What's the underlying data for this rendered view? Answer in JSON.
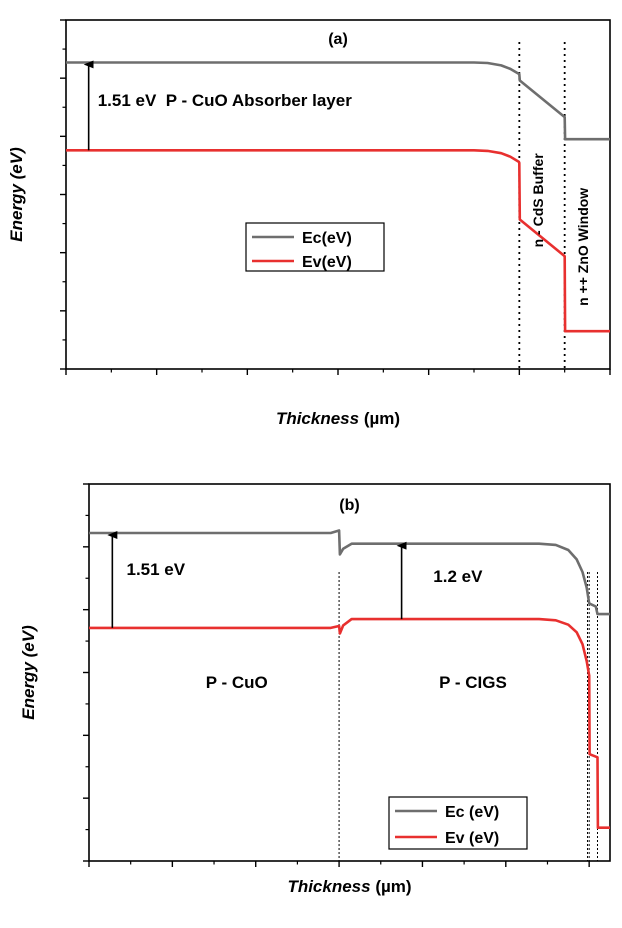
{
  "chart_data": [
    {
      "type": "line",
      "panel": "(a)",
      "xlabel_italic": "Thickness",
      "xlabel_unit": " (µm)",
      "ylabel": "Energy (eV)",
      "xlim": [
        0,
        1.2
      ],
      "ylim": [
        -4,
        2
      ],
      "xticks": [
        "0,0",
        "0,2",
        "0,4",
        "0,6",
        "0,8",
        "1,0",
        "1,2"
      ],
      "xtick_values": [
        0,
        0.2,
        0.4,
        0.6,
        0.8,
        1.0,
        1.2
      ],
      "yticks": [
        "-4",
        "-3",
        "-2",
        "-1",
        "0",
        "1",
        "2"
      ],
      "ytick_values": [
        -4,
        -3,
        -2,
        -1,
        0,
        1,
        2
      ],
      "grid": false,
      "legend_position": "center-left",
      "series": [
        {
          "name": "Ec(eV)",
          "color": "#6e6e6e",
          "points": [
            [
              0,
              1.27
            ],
            [
              0.9,
              1.27
            ],
            [
              0.93,
              1.26
            ],
            [
              0.96,
              1.22
            ],
            [
              0.98,
              1.16
            ],
            [
              1.0,
              1.07
            ],
            [
              1.001,
              0.96
            ],
            [
              1.1,
              0.33
            ],
            [
              1.101,
              -0.05
            ],
            [
              1.2,
              -0.05
            ]
          ]
        },
        {
          "name": "Ev(eV)",
          "color": "#e8302f",
          "points": [
            [
              0,
              -0.24
            ],
            [
              0.9,
              -0.24
            ],
            [
              0.93,
              -0.25
            ],
            [
              0.96,
              -0.29
            ],
            [
              0.98,
              -0.35
            ],
            [
              0.999,
              -0.44
            ],
            [
              1.0,
              -0.46
            ],
            [
              1.001,
              -1.43
            ],
            [
              1.1,
              -2.06
            ],
            [
              1.101,
              -3.35
            ],
            [
              1.2,
              -3.35
            ]
          ]
        }
      ],
      "vlines": [
        1.0,
        1.1
      ],
      "annotations": [
        {
          "text": "1.51 eV",
          "x": 0.07,
          "y": 0.52
        },
        {
          "text": "P - CuO Absorber layer",
          "x": 0.22,
          "y": 0.52
        },
        {
          "text": "n - CdS Buffer",
          "x": 1.052,
          "y": -1.1,
          "rotate": true
        },
        {
          "text": "n ++ ZnO Window",
          "x": 1.152,
          "y": -1.9,
          "rotate": true
        }
      ],
      "arrows": [
        {
          "x": 0.05,
          "from": -0.24,
          "to": 1.27
        }
      ]
    },
    {
      "type": "line",
      "panel": "(b)",
      "xlabel_italic": "Thickness",
      "xlabel_unit": " (µm)",
      "ylabel": "Energy (eV)",
      "xlim": [
        0,
        6.25
      ],
      "ylim": [
        -4,
        2
      ],
      "xticks": [
        "0",
        "1",
        "2",
        "3",
        "4",
        "5",
        "6"
      ],
      "xtick_values": [
        0,
        1,
        2,
        3,
        4,
        5,
        6
      ],
      "yticks": [
        "-4",
        "-3",
        "-2",
        "-1",
        "0",
        "1",
        "2"
      ],
      "ytick_values": [
        -4,
        -3,
        -2,
        -1,
        0,
        1,
        2
      ],
      "grid": false,
      "legend_position": "bottom-right",
      "series": [
        {
          "name": "Ec (eV)",
          "color": "#6e6e6e",
          "points": [
            [
              0,
              1.22
            ],
            [
              2.9,
              1.22
            ],
            [
              3.0,
              1.26
            ],
            [
              3.01,
              0.88
            ],
            [
              3.05,
              0.97
            ],
            [
              3.15,
              1.05
            ],
            [
              5.4,
              1.05
            ],
            [
              5.6,
              1.03
            ],
            [
              5.75,
              0.95
            ],
            [
              5.85,
              0.8
            ],
            [
              5.92,
              0.6
            ],
            [
              5.97,
              0.35
            ],
            [
              6.0,
              0.1
            ],
            [
              6.08,
              0.05
            ],
            [
              6.1,
              -0.07
            ],
            [
              6.25,
              -0.07
            ]
          ]
        },
        {
          "name": "Ev (eV)",
          "color": "#e8302f",
          "points": [
            [
              0,
              -0.29
            ],
            [
              2.9,
              -0.29
            ],
            [
              3.0,
              -0.26
            ],
            [
              3.01,
              -0.38
            ],
            [
              3.05,
              -0.25
            ],
            [
              3.15,
              -0.15
            ],
            [
              5.4,
              -0.15
            ],
            [
              5.6,
              -0.17
            ],
            [
              5.75,
              -0.24
            ],
            [
              5.85,
              -0.36
            ],
            [
              5.92,
              -0.55
            ],
            [
              5.97,
              -0.82
            ],
            [
              6.0,
              -1.05
            ],
            [
              6.005,
              -2.3
            ],
            [
              6.1,
              -2.35
            ],
            [
              6.105,
              -3.47
            ],
            [
              6.25,
              -3.47
            ]
          ]
        }
      ],
      "vlines": [
        3.0,
        5.98,
        6.0,
        6.1
      ],
      "annotations": [
        {
          "text": "1.51 eV",
          "x": 0.45,
          "y": 0.55
        },
        {
          "text": "1.2 eV",
          "x": 4.13,
          "y": 0.44
        },
        {
          "text": "P - CuO",
          "x": 1.4,
          "y": -1.25
        },
        {
          "text": "P - CIGS",
          "x": 4.2,
          "y": -1.25
        }
      ],
      "arrows": [
        {
          "x": 0.28,
          "from": -0.29,
          "to": 1.22
        },
        {
          "x": 3.75,
          "from": -0.15,
          "to": 1.05
        }
      ]
    }
  ]
}
